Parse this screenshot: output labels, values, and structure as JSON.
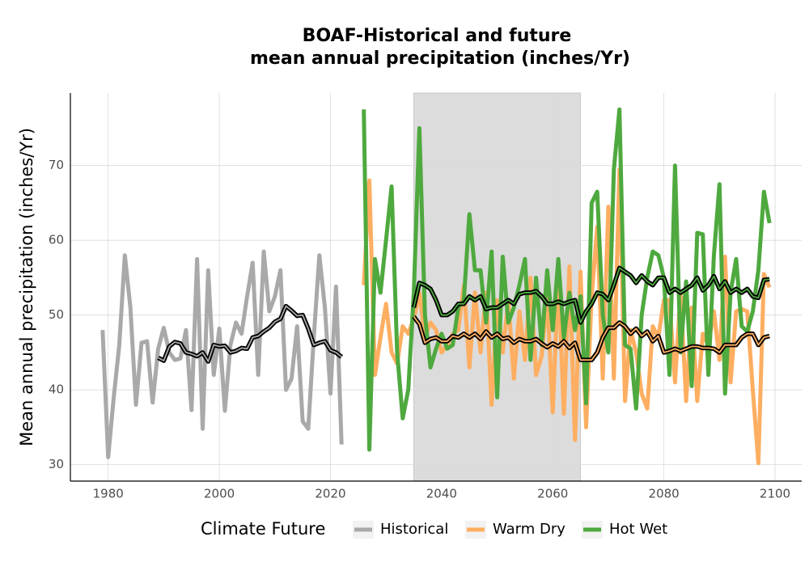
{
  "chart_data": {
    "type": "line",
    "title": [
      "BOAF-Historical and future",
      "mean annual precipitation (inches/Yr)"
    ],
    "ylabel": "Mean annual precipitation (inches/Yr)",
    "legend_title": "Climate Future",
    "legend": "bottom",
    "grid": true,
    "highlight": [
      2035,
      2065
    ],
    "highlight_color": "#dcdcdc",
    "smooth_color": "#000000",
    "xlim": [
      1973.2,
      2104.8
    ],
    "xticks": [
      1980,
      2000,
      2020,
      2040,
      2060,
      2080,
      2100
    ],
    "ylim": [
      27.8,
      79.7
    ],
    "yticks": [
      30,
      40,
      50,
      60,
      70
    ],
    "series": [
      {
        "name": "Historical",
        "color": "#a9a9a9",
        "x": [
          1979,
          1980,
          1981,
          1982,
          1983,
          1984,
          1985,
          1986,
          1987,
          1988,
          1989,
          1990,
          1991,
          1992,
          1993,
          1994,
          1995,
          1996,
          1997,
          1998,
          1999,
          2000,
          2001,
          2002,
          2003,
          2004,
          2005,
          2006,
          2007,
          2008,
          2009,
          2010,
          2011,
          2012,
          2013,
          2014,
          2015,
          2016,
          2017,
          2018,
          2019,
          2020,
          2021,
          2022
        ],
        "values": [
          48,
          31,
          39,
          46,
          58,
          51,
          38,
          46.3,
          46.5,
          38.3,
          45.5,
          48.3,
          45,
          44,
          44.2,
          48,
          37.3,
          57.5,
          34.8,
          56,
          42,
          48.2,
          37.2,
          46,
          49,
          47.5,
          52.5,
          57,
          42,
          58.5,
          50.5,
          52.5,
          56,
          40,
          41.5,
          48.5,
          35.8,
          34.8,
          47,
          58,
          51,
          39.5,
          53.8,
          32.7
        ],
        "smooth": {
          "x": [
            1989,
            1990,
            1991,
            1992,
            1993,
            1994,
            1995,
            1996,
            1997,
            1998,
            1999,
            2000,
            2001,
            2002,
            2003,
            2004,
            2005,
            2006,
            2007,
            2008,
            2009,
            2010,
            2011,
            2012,
            2013,
            2014,
            2015,
            2016,
            2017,
            2018,
            2019,
            2020,
            2021,
            2022
          ],
          "values": [
            44.3,
            43.9,
            45.8,
            46.4,
            46.2,
            45,
            44.8,
            44.5,
            45,
            43.8,
            46,
            45.8,
            45.9,
            45,
            45.2,
            45.6,
            45.5,
            47,
            47.2,
            47.8,
            48.3,
            49.1,
            49.5,
            51.2,
            50.6,
            49.9,
            50,
            48.2,
            46,
            46.3,
            46.5,
            45.3,
            45,
            44.4
          ]
        }
      },
      {
        "name": "Warm Dry",
        "color": "#fdae61",
        "x": [
          2026,
          2027,
          2028,
          2029,
          2030,
          2031,
          2032,
          2033,
          2034,
          2035,
          2036,
          2037,
          2038,
          2039,
          2040,
          2041,
          2042,
          2043,
          2044,
          2045,
          2046,
          2047,
          2048,
          2049,
          2050,
          2051,
          2052,
          2053,
          2054,
          2055,
          2056,
          2057,
          2058,
          2059,
          2060,
          2061,
          2062,
          2063,
          2064,
          2065,
          2066,
          2067,
          2068,
          2069,
          2070,
          2071,
          2072,
          2073,
          2074,
          2075,
          2076,
          2077,
          2078,
          2079,
          2080,
          2081,
          2082,
          2083,
          2084,
          2085,
          2086,
          2087,
          2088,
          2089,
          2090,
          2091,
          2092,
          2093,
          2094,
          2095,
          2096,
          2097,
          2098,
          2099
        ],
        "values": [
          54,
          68,
          42,
          47,
          51.5,
          45,
          43.5,
          48.5,
          47.5,
          49.5,
          53,
          47,
          49,
          48,
          45,
          46,
          47.5,
          48,
          54,
          43,
          53,
          45,
          53,
          38,
          52,
          45,
          52,
          41.5,
          50.5,
          44,
          55,
          42,
          44.5,
          52.5,
          37,
          55.5,
          36.8,
          56.5,
          33.3,
          55.8,
          35,
          52.5,
          61.8,
          41.5,
          64.5,
          41.5,
          69.5,
          38.5,
          48,
          45,
          39.5,
          37.5,
          48.5,
          47,
          52,
          52,
          41,
          53,
          38.5,
          51,
          38.5,
          47.5,
          46,
          50.5,
          44,
          57.8,
          41,
          50.5,
          50.8,
          50.5,
          40,
          30.2,
          55.5,
          53.7
        ],
        "smooth": {
          "x": [
            2035,
            2036,
            2037,
            2038,
            2039,
            2040,
            2041,
            2042,
            2043,
            2044,
            2045,
            2046,
            2047,
            2048,
            2049,
            2050,
            2051,
            2052,
            2053,
            2054,
            2055,
            2056,
            2057,
            2058,
            2059,
            2060,
            2061,
            2062,
            2063,
            2064,
            2065,
            2066,
            2067,
            2068,
            2069,
            2070,
            2071,
            2072,
            2073,
            2074,
            2075,
            2076,
            2077,
            2078,
            2079,
            2080,
            2081,
            2082,
            2083,
            2084,
            2085,
            2086,
            2087,
            2088,
            2089,
            2090,
            2091,
            2092,
            2093,
            2094,
            2095,
            2096,
            2097,
            2098,
            2099
          ],
          "values": [
            49.8,
            48.8,
            46.3,
            46.8,
            47,
            46.5,
            46.5,
            47.2,
            47,
            47.5,
            47,
            47.5,
            46.8,
            47.8,
            47,
            47.5,
            46.8,
            47,
            46.3,
            46.8,
            46.5,
            46.5,
            46.8,
            46.2,
            45.7,
            46.2,
            45.8,
            46.5,
            45.6,
            46.3,
            44,
            44,
            44,
            45,
            47,
            48.3,
            48.3,
            49,
            48.5,
            47.5,
            48.2,
            47.2,
            47.8,
            46.5,
            47.2,
            45,
            45.2,
            45.5,
            45.2,
            45.5,
            45.8,
            45.8,
            45.6,
            45.6,
            45.5,
            45,
            46,
            46,
            46,
            47,
            47.5,
            47.5,
            46,
            47,
            47.2
          ]
        }
      },
      {
        "name": "Hot Wet",
        "color": "#4ea93e",
        "x": [
          2026,
          2027,
          2028,
          2029,
          2030,
          2031,
          2032,
          2033,
          2034,
          2035,
          2036,
          2037,
          2038,
          2039,
          2040,
          2041,
          2042,
          2043,
          2044,
          2045,
          2046,
          2047,
          2048,
          2049,
          2050,
          2051,
          2052,
          2053,
          2054,
          2055,
          2056,
          2057,
          2058,
          2059,
          2060,
          2061,
          2062,
          2063,
          2064,
          2065,
          2066,
          2067,
          2068,
          2069,
          2070,
          2071,
          2072,
          2073,
          2074,
          2075,
          2076,
          2077,
          2078,
          2079,
          2080,
          2081,
          2082,
          2083,
          2084,
          2085,
          2086,
          2087,
          2088,
          2089,
          2090,
          2091,
          2092,
          2093,
          2094,
          2095,
          2096,
          2097,
          2098,
          2099
        ],
        "values": [
          77.5,
          32,
          57.5,
          53,
          60,
          67.2,
          45,
          36.2,
          40,
          53,
          75,
          50,
          43,
          45.5,
          47.5,
          45.5,
          46,
          51,
          52,
          63.5,
          56,
          56,
          49,
          58.5,
          39,
          57.8,
          49,
          51,
          54,
          57.5,
          44,
          55,
          46,
          56,
          48,
          57.5,
          47,
          53,
          48,
          52.5,
          38.2,
          65,
          66.5,
          50,
          45,
          69.5,
          77.5,
          46,
          45.5,
          37.5,
          50,
          55,
          58.5,
          58,
          55,
          42,
          70,
          45,
          54.5,
          40.5,
          61,
          60.8,
          42,
          58,
          67.5,
          39.5,
          53,
          57.5,
          48.5,
          47.8,
          50.5,
          56,
          66.5,
          62.3
        ],
        "smooth": {
          "x": [
            2035,
            2036,
            2037,
            2038,
            2039,
            2040,
            2041,
            2042,
            2043,
            2044,
            2045,
            2046,
            2047,
            2048,
            2049,
            2050,
            2051,
            2052,
            2053,
            2054,
            2055,
            2056,
            2057,
            2058,
            2059,
            2060,
            2061,
            2062,
            2063,
            2064,
            2065,
            2066,
            2067,
            2068,
            2069,
            2070,
            2071,
            2072,
            2073,
            2074,
            2075,
            2076,
            2077,
            2078,
            2079,
            2080,
            2081,
            2082,
            2083,
            2084,
            2085,
            2086,
            2087,
            2088,
            2089,
            2090,
            2091,
            2092,
            2093,
            2094,
            2095,
            2096,
            2097,
            2098,
            2099
          ],
          "values": [
            51,
            54.3,
            54,
            53.5,
            52,
            50,
            50,
            50.5,
            51.5,
            51.5,
            52.5,
            52,
            52.5,
            50.8,
            51,
            51,
            51.5,
            52,
            51.5,
            52.8,
            53,
            53,
            53.2,
            52.5,
            51.5,
            51.5,
            51.8,
            51.5,
            51.8,
            52,
            49,
            50.5,
            51.5,
            53,
            52.8,
            52,
            54,
            56.3,
            55.8,
            55.3,
            54.3,
            55.3,
            54.5,
            54,
            55,
            55,
            53,
            53.5,
            53,
            53.5,
            54,
            55,
            53.3,
            54,
            55.2,
            53.5,
            54.5,
            53,
            53.5,
            53,
            53.5,
            52.5,
            52.3,
            54.7,
            54.8
          ]
        }
      }
    ]
  }
}
